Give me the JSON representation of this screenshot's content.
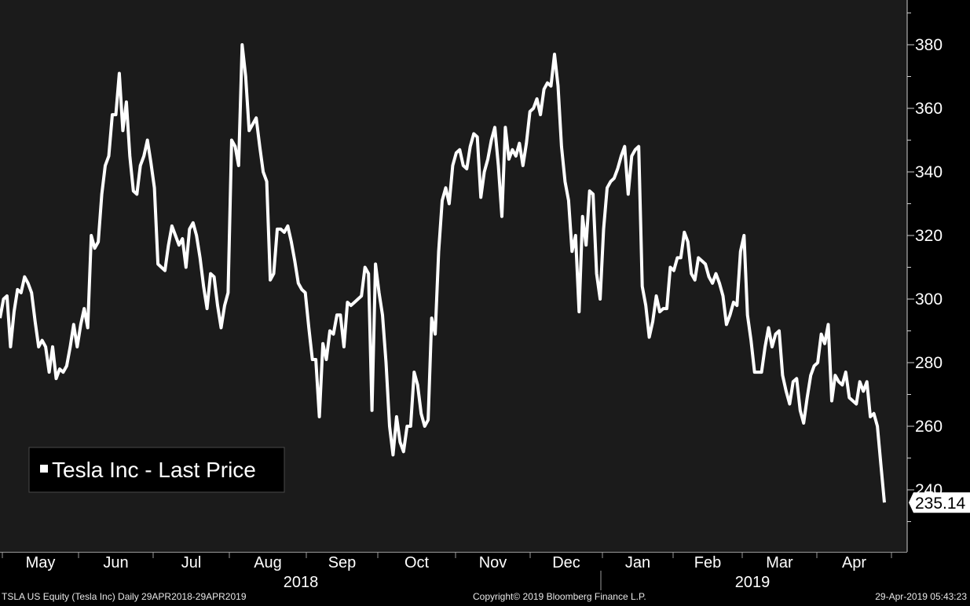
{
  "chart_data": {
    "type": "line",
    "title": "",
    "legend": "Tesla Inc - Last Price",
    "last_value_label": "235.14",
    "ylim": [
      222,
      392
    ],
    "y_ticks": [
      240,
      260,
      280,
      300,
      320,
      340,
      360,
      380
    ],
    "y_tick_labels": [
      "240",
      "260",
      "280",
      "300",
      "320",
      "340",
      "360",
      "380"
    ],
    "month_labels": [
      "May",
      "Jun",
      "Jul",
      "Aug",
      "Sep",
      "Oct",
      "Nov",
      "Dec",
      "Jan",
      "Feb",
      "Mar",
      "Apr"
    ],
    "year_labels": [
      "2018",
      "2019"
    ],
    "series": [
      {
        "name": "Tesla Inc - Last Price",
        "values": [
          294,
          300,
          301,
          285,
          296,
          303,
          302,
          307,
          305,
          302,
          293,
          285,
          287,
          285,
          277,
          285,
          275,
          278,
          277,
          279,
          285,
          292,
          285,
          292,
          297,
          291,
          320,
          316,
          318,
          333,
          342,
          345,
          358,
          358,
          371,
          353,
          362,
          345,
          334,
          333,
          342,
          345,
          350,
          343,
          335,
          311,
          310,
          309,
          317,
          323,
          320,
          317,
          319,
          310,
          322,
          324,
          320,
          313,
          304,
          297,
          308,
          307,
          298,
          291,
          298,
          302,
          350,
          348,
          342,
          380,
          370,
          353,
          355,
          357,
          348,
          340,
          337,
          306,
          308,
          322,
          322,
          321,
          323,
          318,
          312,
          305,
          303,
          302,
          291,
          281,
          281,
          263,
          286,
          281,
          290,
          289,
          295,
          295,
          285,
          299,
          298,
          299,
          300,
          301,
          310,
          308,
          265,
          311,
          302,
          295,
          280,
          260,
          251,
          263,
          255,
          252,
          260,
          260,
          277,
          273,
          264,
          260,
          262,
          294,
          289,
          315,
          331,
          335,
          330,
          342,
          346,
          347,
          342,
          341,
          348,
          352,
          351,
          332,
          340,
          344,
          350,
          354,
          342,
          326,
          354,
          344,
          347,
          345,
          349,
          342,
          349,
          359,
          360,
          363,
          358,
          366,
          368,
          367,
          377,
          367,
          348,
          337,
          331,
          315,
          320,
          296,
          326,
          317,
          334,
          333,
          308,
          300,
          322,
          335,
          337,
          338,
          341,
          345,
          348,
          333,
          345,
          347,
          348,
          304,
          298,
          288,
          293,
          301,
          296,
          297,
          297,
          310,
          309,
          313,
          313,
          321,
          318,
          308,
          306,
          313,
          312,
          311,
          307,
          305,
          308,
          305,
          301,
          292,
          295,
          299,
          298,
          315,
          320,
          295,
          287,
          277,
          277,
          277,
          285,
          291,
          285,
          289,
          290,
          276,
          271,
          267,
          274,
          275,
          265,
          261,
          269,
          276,
          279,
          280,
          289,
          286,
          292,
          268,
          276,
          274,
          273,
          277,
          269,
          268,
          267,
          274,
          271,
          274,
          263,
          264,
          260,
          248,
          236
        ]
      }
    ],
    "grid": false,
    "legend_position": "bottom-left",
    "colors": {
      "background": "#000000",
      "plot_background": "#1b1b1b",
      "line": "#ffffff"
    }
  },
  "footer": {
    "left": "TSLA US Equity (Tesla Inc)  Daily 29APR2018-29APR2019",
    "center": "Copyright© 2019 Bloomberg Finance L.P.",
    "right": "29-Apr-2019 05:43:23"
  }
}
